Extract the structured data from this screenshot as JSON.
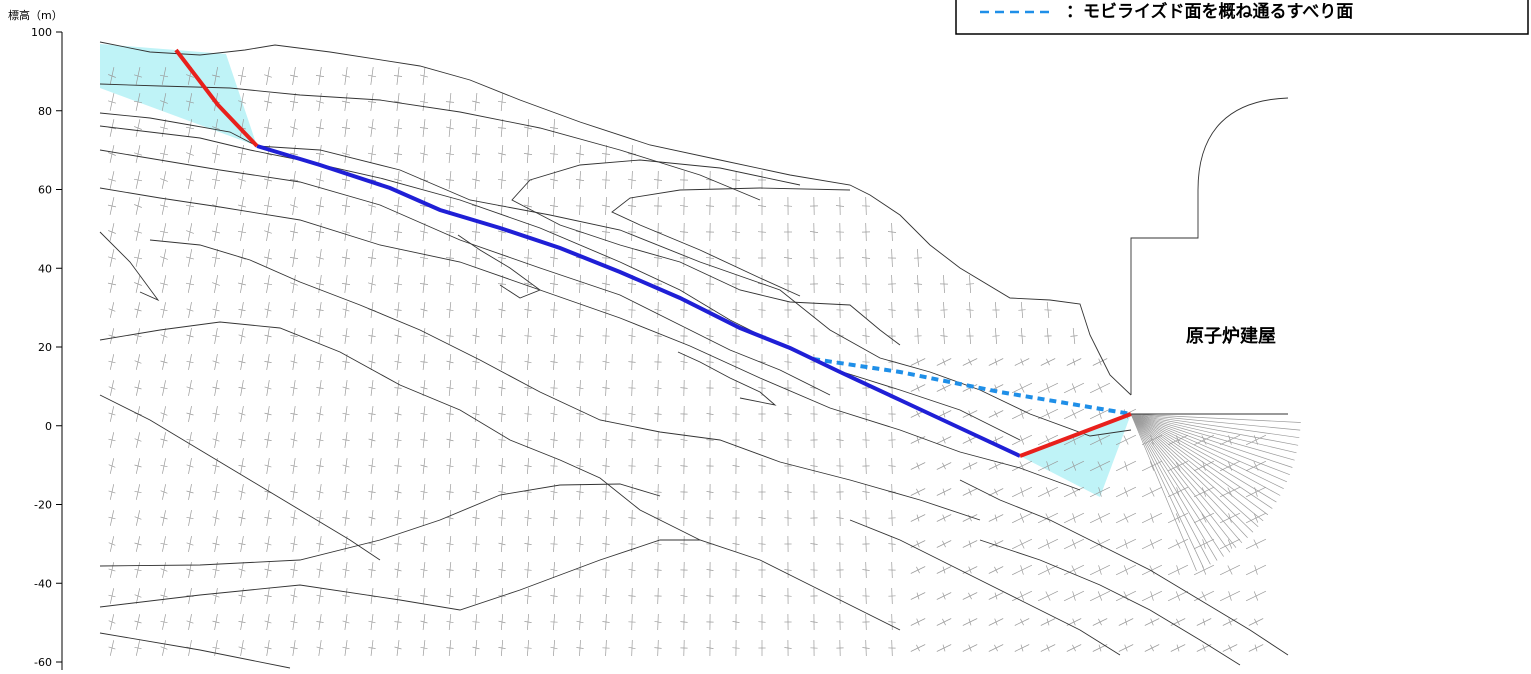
{
  "axis": {
    "label": "標高（m）",
    "ticks": [
      100,
      80,
      60,
      40,
      20,
      0,
      -20,
      -40,
      -60
    ],
    "range": [
      -60,
      100
    ]
  },
  "legend": {
    "dashed_label": "：モビライズド面を概ね通るすべり面"
  },
  "building": {
    "label": "原子炉建屋"
  },
  "colors": {
    "slip_surface": "#1f1fd6",
    "slip_ends": "#e8201c",
    "mobilized_dashed": "#1f8fe8",
    "zone_fill": "#bff3f7",
    "geology_lines": "#333333",
    "stress_marks": "#9a9a9a"
  }
}
